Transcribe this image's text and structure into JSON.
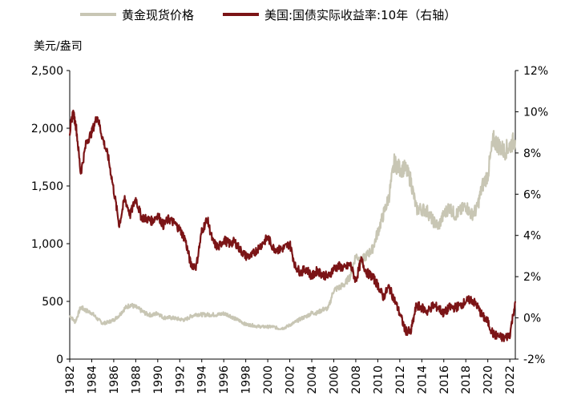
{
  "chart_data": {
    "type": "line",
    "ylabel_left": "美元/盎司",
    "ylim_left": [
      0,
      2500
    ],
    "yticks_left": [
      "0",
      "500",
      "1,000",
      "1,500",
      "2,000",
      "2,500"
    ],
    "ylim_right": [
      -2,
      12
    ],
    "yticks_right": [
      "-2%",
      "0%",
      "2%",
      "4%",
      "6%",
      "8%",
      "10%",
      "12%"
    ],
    "xlim": [
      1982,
      2022.5
    ],
    "xticks": [
      "1982",
      "1984",
      "1986",
      "1988",
      "1990",
      "1992",
      "1994",
      "1996",
      "1998",
      "2000",
      "2002",
      "2004",
      "2006",
      "2008",
      "2010",
      "2012",
      "2014",
      "2016",
      "2018",
      "2020",
      "2022"
    ],
    "legend_position": "top",
    "series": [
      {
        "name": "黄金现货价格",
        "axis": "left",
        "color": "#c8c6b4",
        "x": [
          1982,
          1982.5,
          1983,
          1983.5,
          1984,
          1984.5,
          1985,
          1985.5,
          1986,
          1986.5,
          1987,
          1987.5,
          1988,
          1988.5,
          1989,
          1989.5,
          1990,
          1990.5,
          1991,
          1991.5,
          1992,
          1992.5,
          1993,
          1993.5,
          1994,
          1994.5,
          1995,
          1995.5,
          1996,
          1996.5,
          1997,
          1997.5,
          1998,
          1998.5,
          1999,
          1999.5,
          2000,
          2000.5,
          2001,
          2001.5,
          2002,
          2002.5,
          2003,
          2003.5,
          2004,
          2004.5,
          2005,
          2005.5,
          2006,
          2006.5,
          2007,
          2007.5,
          2008,
          2008.5,
          2009,
          2009.5,
          2010,
          2010.5,
          2011,
          2011.5,
          2012,
          2012.5,
          2013,
          2013.5,
          2014,
          2014.5,
          2015,
          2015.5,
          2016,
          2016.5,
          2017,
          2017.5,
          2018,
          2018.5,
          2019,
          2019.5,
          2020,
          2020.5,
          2021,
          2021.5,
          2022,
          2022.5
        ],
        "values": [
          380,
          320,
          450,
          420,
          400,
          350,
          310,
          320,
          340,
          380,
          440,
          470,
          450,
          420,
          390,
          380,
          400,
          360,
          360,
          355,
          345,
          340,
          370,
          390,
          385,
          385,
          385,
          385,
          395,
          380,
          350,
          330,
          300,
          295,
          285,
          280,
          280,
          280,
          265,
          270,
          295,
          320,
          350,
          370,
          400,
          400,
          430,
          440,
          600,
          620,
          650,
          720,
          900,
          850,
          900,
          950,
          1100,
          1250,
          1400,
          1700,
          1650,
          1650,
          1550,
          1300,
          1300,
          1280,
          1200,
          1150,
          1250,
          1320,
          1250,
          1280,
          1330,
          1250,
          1300,
          1500,
          1600,
          1900,
          1850,
          1800,
          1850,
          1900
        ]
      },
      {
        "name": "美国:国债实际收益率:10年（右轴）",
        "axis": "right",
        "color": "#7b1416",
        "x": [
          1982,
          1982.3,
          1982.6,
          1983,
          1983.5,
          1984,
          1984.5,
          1985,
          1985.5,
          1986,
          1986.5,
          1987,
          1987.5,
          1988,
          1988.5,
          1989,
          1989.5,
          1990,
          1990.5,
          1991,
          1991.5,
          1992,
          1992.5,
          1993,
          1993.5,
          1994,
          1994.5,
          1995,
          1995.5,
          1996,
          1996.5,
          1997,
          1997.5,
          1998,
          1998.5,
          1999,
          1999.5,
          2000,
          2000.5,
          2001,
          2001.5,
          2002,
          2002.5,
          2003,
          2003.5,
          2004,
          2004.5,
          2005,
          2005.5,
          2006,
          2006.5,
          2007,
          2007.5,
          2008,
          2008.5,
          2009,
          2009.5,
          2010,
          2010.5,
          2011,
          2011.5,
          2012,
          2012.5,
          2013,
          2013.5,
          2014,
          2014.5,
          2015,
          2015.5,
          2016,
          2016.5,
          2017,
          2017.5,
          2018,
          2018.5,
          2019,
          2019.5,
          2020,
          2020.5,
          2021,
          2021.5,
          2022,
          2022.5
        ],
        "values": [
          9.0,
          10.0,
          9.2,
          7.0,
          8.5,
          9.0,
          9.8,
          8.7,
          7.8,
          6.2,
          4.5,
          5.8,
          5.0,
          5.8,
          4.9,
          4.8,
          4.7,
          5.0,
          4.5,
          4.8,
          4.6,
          4.3,
          3.8,
          2.6,
          2.5,
          4.2,
          4.8,
          3.7,
          3.4,
          3.8,
          3.6,
          3.7,
          3.3,
          3.0,
          3.0,
          3.3,
          3.6,
          3.9,
          3.4,
          3.3,
          3.4,
          3.6,
          2.5,
          2.2,
          2.4,
          2.0,
          2.3,
          2.1,
          2.0,
          2.4,
          2.5,
          2.4,
          2.6,
          1.8,
          2.8,
          2.2,
          2.0,
          1.6,
          1.0,
          1.5,
          0.9,
          0.2,
          -0.6,
          -0.7,
          0.6,
          0.5,
          0.3,
          0.6,
          0.5,
          0.2,
          0.5,
          0.5,
          0.6,
          0.8,
          0.9,
          0.6,
          0.1,
          -0.2,
          -0.8,
          -0.9,
          -1.0,
          -0.8,
          0.8
        ]
      }
    ]
  }
}
